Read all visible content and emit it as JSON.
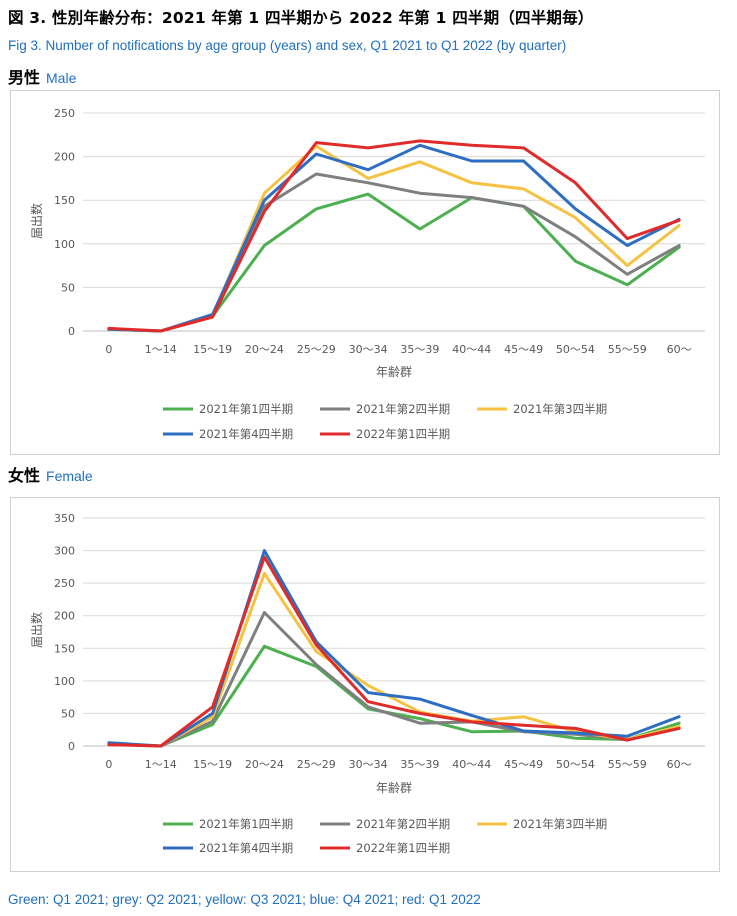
{
  "title_jp": "図 3. 性別年齢分布：2021 年第 1 四半期から 2022 年第 1 四半期（四半期毎）",
  "title_en": "Fig 3. Number of notifications by age group (years) and sex, Q1 2021 to Q1 2022 (by quarter)",
  "footer": "Green: Q1 2021; grey: Q2 2021; yellow: Q3 2021; blue: Q4 2021; red: Q1 2022",
  "chart_data": [
    {
      "type": "line",
      "section_jp": "男性",
      "section_en": "Male",
      "xlabel": "年齢群",
      "ylabel": "届出数",
      "ylim": [
        0,
        250
      ],
      "yticks": [
        0,
        50,
        100,
        150,
        200,
        250
      ],
      "grid": true,
      "legend_position": "bottom",
      "categories": [
        "0",
        "1〜14",
        "15〜19",
        "20〜24",
        "25〜29",
        "30〜34",
        "35〜39",
        "40〜44",
        "45〜49",
        "50〜54",
        "55〜59",
        "60〜"
      ],
      "series": [
        {
          "name": "2021年第1四半期",
          "color": "#4caf50",
          "values": [
            2,
            0,
            17,
            98,
            140,
            157,
            117,
            153,
            143,
            80,
            53,
            96
          ]
        },
        {
          "name": "2021年第2四半期",
          "color": "#7f7f7f",
          "values": [
            2,
            0,
            17,
            143,
            180,
            170,
            158,
            153,
            143,
            108,
            65,
            98
          ]
        },
        {
          "name": "2021年第3四半期",
          "color": "#f5c242",
          "values": [
            2,
            0,
            17,
            158,
            212,
            175,
            194,
            170,
            163,
            130,
            75,
            121
          ]
        },
        {
          "name": "2021年第4四半期",
          "color": "#2e6ec2",
          "values": [
            2,
            0,
            19,
            150,
            203,
            185,
            213,
            195,
            195,
            140,
            98,
            128
          ]
        },
        {
          "name": "2022年第1四半期",
          "color": "#e02b2b",
          "values": [
            3,
            0,
            16,
            137,
            216,
            210,
            218,
            213,
            210,
            170,
            106,
            127
          ]
        }
      ]
    },
    {
      "type": "line",
      "section_jp": "女性",
      "section_en": "Female",
      "xlabel": "年齢群",
      "ylabel": "届出数",
      "ylim": [
        0,
        350
      ],
      "yticks": [
        0,
        50,
        100,
        150,
        200,
        250,
        300,
        350
      ],
      "grid": true,
      "legend_position": "bottom",
      "categories": [
        "0",
        "1〜14",
        "15〜19",
        "20〜24",
        "25〜29",
        "30〜34",
        "35〜39",
        "40〜44",
        "45〜49",
        "50〜54",
        "55〜59",
        "60〜"
      ],
      "series": [
        {
          "name": "2021年第1四半期",
          "color": "#4caf50",
          "values": [
            3,
            0,
            33,
            153,
            122,
            57,
            42,
            22,
            23,
            12,
            10,
            35
          ]
        },
        {
          "name": "2021年第2四半期",
          "color": "#7f7f7f",
          "values": [
            3,
            0,
            38,
            205,
            125,
            60,
            35,
            37,
            22,
            18,
            10,
            28
          ]
        },
        {
          "name": "2021年第3四半期",
          "color": "#f5c242",
          "values": [
            3,
            0,
            45,
            265,
            145,
            93,
            52,
            38,
            45,
            22,
            10,
            30
          ]
        },
        {
          "name": "2021年第4四半期",
          "color": "#2e6ec2",
          "values": [
            5,
            0,
            50,
            300,
            160,
            82,
            72,
            47,
            23,
            20,
            15,
            45
          ]
        },
        {
          "name": "2022年第1四半期",
          "color": "#e02b2b",
          "values": [
            2,
            0,
            60,
            290,
            155,
            68,
            50,
            37,
            32,
            27,
            9,
            27
          ]
        }
      ]
    }
  ]
}
